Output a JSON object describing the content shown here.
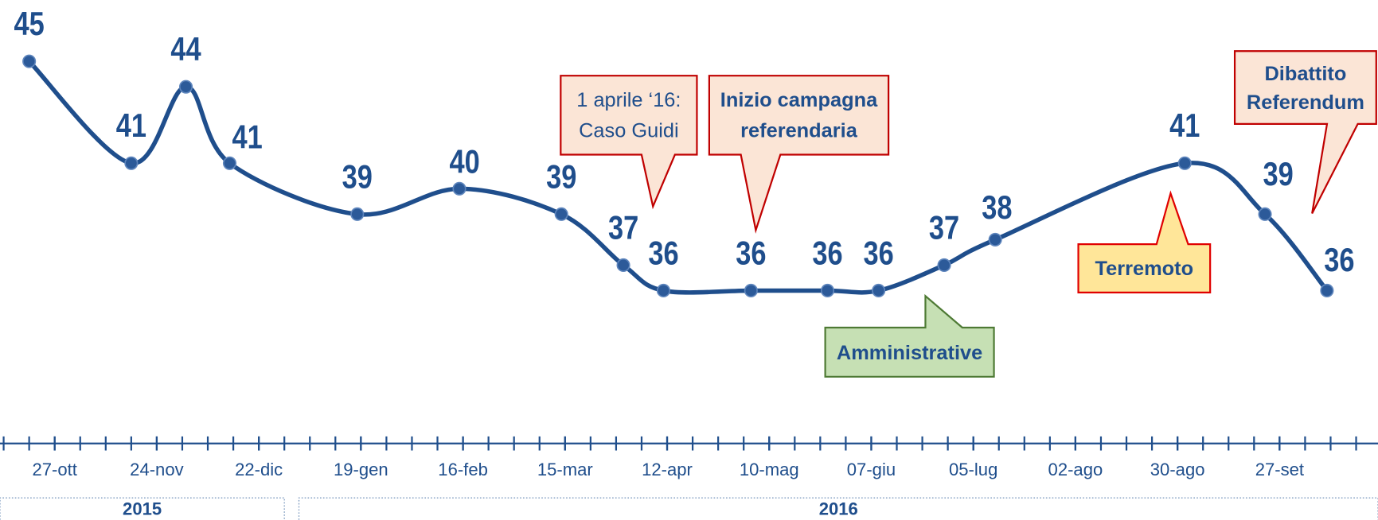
{
  "chart_data": {
    "type": "line",
    "x": [
      "2015-10-20",
      "2015-11-17",
      "2015-12-02",
      "2015-12-14",
      "2016-01-18",
      "2016-02-15",
      "2016-03-14",
      "2016-03-31",
      "2016-04-11",
      "2016-05-05",
      "2016-05-26",
      "2016-06-09",
      "2016-06-27",
      "2016-07-11",
      "2016-09-01",
      "2016-09-23",
      "2016-10-10"
    ],
    "series": [
      {
        "color": "#1f4e8c",
        "values": [
          45,
          41,
          44,
          41,
          39,
          40,
          39,
          37,
          36,
          36,
          36,
          36,
          37,
          38,
          41,
          39,
          36
        ]
      }
    ],
    "xlim": [
      "2015-10-12",
      "2016-10-24"
    ],
    "xticks": [
      {
        "value": "2015-10-27",
        "label": "27-ott"
      },
      {
        "value": "2015-11-24",
        "label": "24-nov"
      },
      {
        "value": "2015-12-22",
        "label": "22-dic"
      },
      {
        "value": "2016-01-19",
        "label": "19-gen"
      },
      {
        "value": "2016-02-16",
        "label": "16-feb"
      },
      {
        "value": "2016-03-15",
        "label": "15-mar"
      },
      {
        "value": "2016-04-12",
        "label": "12-apr"
      },
      {
        "value": "2016-05-10",
        "label": "10-mag"
      },
      {
        "value": "2016-06-07",
        "label": "07-giu"
      },
      {
        "value": "2016-07-05",
        "label": "05-lug"
      },
      {
        "value": "2016-08-02",
        "label": "02-ago"
      },
      {
        "value": "2016-08-30",
        "label": "30-ago"
      },
      {
        "value": "2016-09-27",
        "label": "27-set"
      }
    ],
    "ylim": [
      30,
      47.4
    ],
    "year_bands": [
      {
        "label": "2015",
        "from": "2015-10-12",
        "to": "2015-12-29"
      },
      {
        "label": "2016",
        "from": "2016-01-02",
        "to": "2016-10-24"
      }
    ],
    "annotations": [
      {
        "text": [
          "1 aprile ‘16:",
          "Caso Guidi"
        ]
      },
      {
        "text": [
          "Inizio campagna",
          "referendaria"
        ]
      },
      {
        "text": [
          "Amministrative"
        ]
      },
      {
        "text": [
          "Terremoto"
        ]
      },
      {
        "text": [
          "Dibattito",
          "Referendum"
        ]
      }
    ]
  }
}
